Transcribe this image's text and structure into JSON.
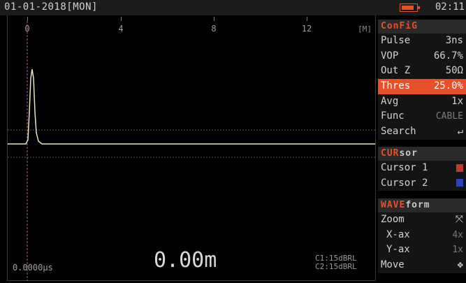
{
  "status_bar": {
    "date": "01-01-2018[MON]",
    "time": "02:11",
    "battery_level": 0.85
  },
  "colors": {
    "accent": "#e8502a",
    "trace": "#e6e6c0",
    "cursor1": "#c0392b",
    "cursor2": "#2b3fc0",
    "cursor_line": "#b04fb0"
  },
  "scale": {
    "ticks": [
      "0",
      "4",
      "8",
      "12"
    ],
    "unit": "[M]"
  },
  "readout": {
    "distance": "0.00m",
    "time": "0.0000µs",
    "c1": "C1:15dBRL",
    "c2": "C2:15dBRL"
  },
  "config": {
    "title_accent": "ConFiG",
    "rows": [
      {
        "label": "Pulse",
        "value": "3ns"
      },
      {
        "label": "VOP",
        "value": "66.7%"
      },
      {
        "label": "Out Z",
        "value": "50Ω"
      },
      {
        "label": "Thres",
        "value": "25.0%"
      },
      {
        "label": "Avg",
        "value": "1x"
      },
      {
        "label": "Func",
        "value": "CABLE"
      },
      {
        "label": "Search",
        "value": "↵"
      }
    ]
  },
  "cursor_panel": {
    "title_accent": "CUR",
    "title_rest": "sor",
    "rows": [
      {
        "label": "Cursor 1"
      },
      {
        "label": "Cursor 2"
      }
    ]
  },
  "waveform_panel": {
    "title_accent": "WAVE",
    "title_rest": "form",
    "rows": [
      {
        "label": "Zoom",
        "value": "⤧"
      },
      {
        "label": "X-ax",
        "value": "4x"
      },
      {
        "label": "Y-ax",
        "value": "1x"
      },
      {
        "label": "Move",
        "value": "✥"
      }
    ]
  }
}
